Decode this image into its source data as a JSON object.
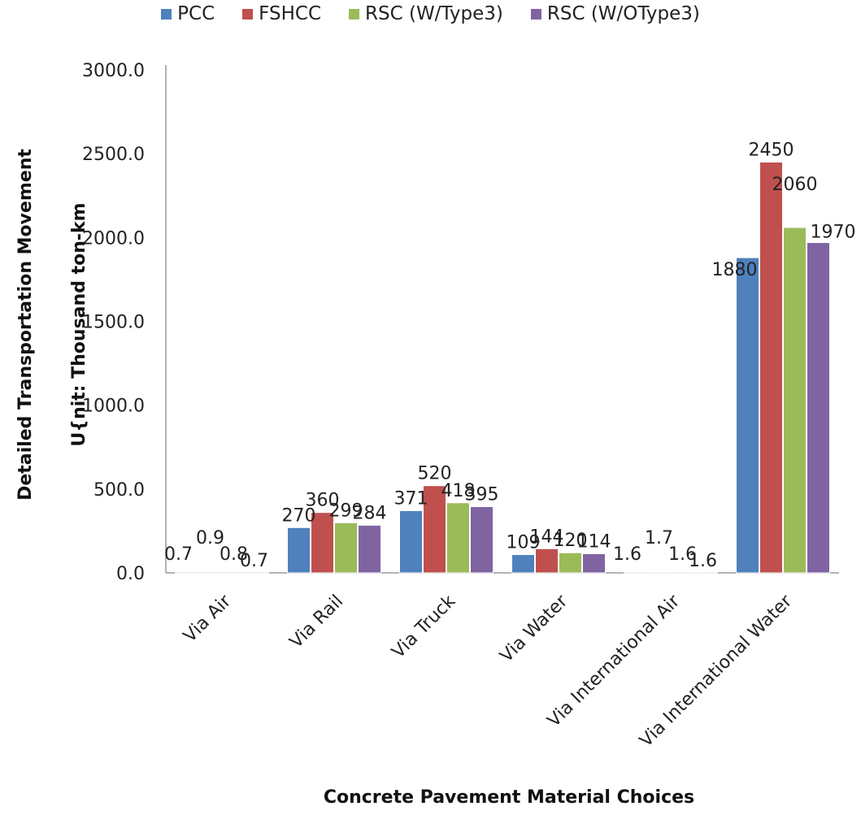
{
  "chart_data": {
    "type": "bar",
    "title": "",
    "xlabel": "Concrete Pavement Material Choices",
    "ylabel_line1": "Detailed Transportation Movement",
    "ylabel_line2": "U{nit: Thousand   ton-km",
    "ylim": [
      0,
      3000
    ],
    "yticks": [
      "0.0",
      "500.0",
      "1000.0",
      "1500.0",
      "2000.0",
      "2500.0",
      "3000.0"
    ],
    "categories": [
      "Via Air",
      "Via Rail",
      "Via Truck",
      "Via Water",
      "Via International Air",
      "Via International Water"
    ],
    "series": [
      {
        "name": "PCC",
        "color": "#4f81bd",
        "values": [
          0.7,
          270,
          371,
          109,
          1.6,
          1880
        ],
        "labels": [
          "0.7",
          "270",
          "371",
          "109",
          "1.6",
          "1880"
        ]
      },
      {
        "name": "FSHCC",
        "color": "#c0504d",
        "values": [
          0.9,
          360,
          520,
          144,
          1.7,
          2450
        ],
        "labels": [
          "0.9",
          "360",
          "520",
          "144",
          "1.7",
          "2450"
        ]
      },
      {
        "name": "RSC (W/Type3)",
        "color": "#9bbb59",
        "values": [
          0.8,
          299,
          418,
          120,
          1.6,
          2060
        ],
        "labels": [
          "0.8",
          "299",
          "418",
          "120",
          "1.6",
          "2060"
        ]
      },
      {
        "name": "RSC (W/OType3)",
        "color": "#8064a2",
        "values": [
          0.7,
          284,
          395,
          114,
          1.6,
          1970
        ],
        "labels": [
          "0.7",
          "284",
          "395",
          "114",
          "1.6",
          "1970"
        ]
      }
    ],
    "grid": false,
    "legend": "top-center"
  }
}
